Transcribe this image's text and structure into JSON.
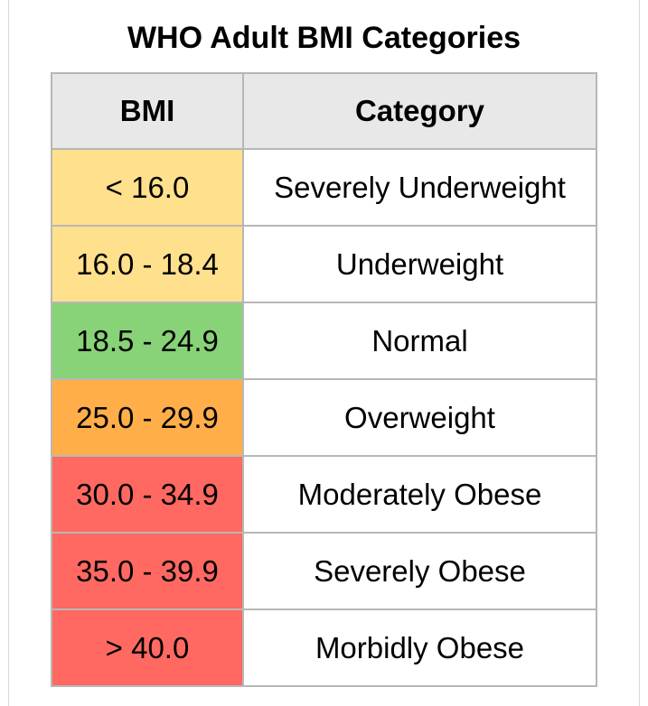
{
  "title": "WHO Adult BMI Categories",
  "table": {
    "headers": [
      "BMI",
      "Category"
    ],
    "rows": [
      {
        "bmi": "< 16.0",
        "category": "Severely Underweight",
        "color": "#ffe08d"
      },
      {
        "bmi": "16.0 - 18.4",
        "category": "Underweight",
        "color": "#ffe08d"
      },
      {
        "bmi": "18.5 - 24.9",
        "category": "Normal",
        "color": "#88d277"
      },
      {
        "bmi": "25.0 - 29.9",
        "category": "Overweight",
        "color": "#ffae49"
      },
      {
        "bmi": "30.0 - 34.9",
        "category": "Moderately Obese",
        "color": "#ff6961"
      },
      {
        "bmi": "35.0 - 39.9",
        "category": "Severely Obese",
        "color": "#ff6961"
      },
      {
        "bmi": "> 40.0",
        "category": "Morbidly Obese",
        "color": "#ff6961"
      }
    ]
  },
  "colors": {
    "header_background": "#e8e8e8",
    "border": "#b7b7b7",
    "text": "#000000"
  }
}
